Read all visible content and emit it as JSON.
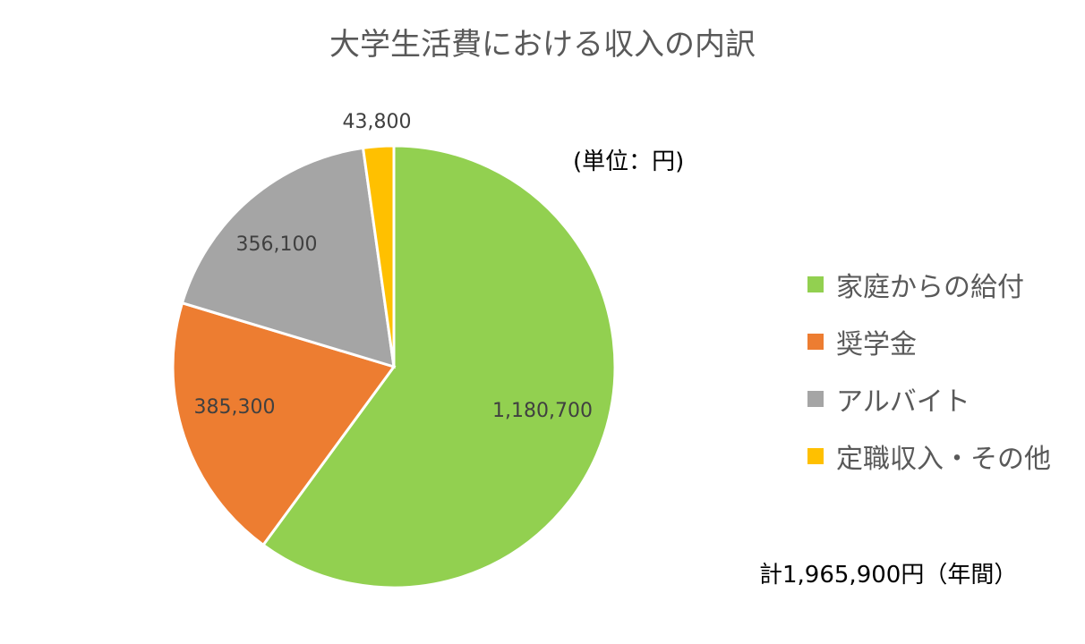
{
  "chart_data": {
    "type": "pie",
    "title": "大学生活費における収入の内訳",
    "unit_note": "(単位：円)",
    "total_note": "計1,965,900円（年間）",
    "legend_position": "right",
    "slices": [
      {
        "label": "家庭からの給付",
        "value": 1180700,
        "display": "1,180,700",
        "color": "#92d050"
      },
      {
        "label": "奨学金",
        "value": 385300,
        "display": "385,300",
        "color": "#ed7d31"
      },
      {
        "label": "アルバイト",
        "value": 356100,
        "display": "356,100",
        "color": "#a5a5a5"
      },
      {
        "label": "定職収入・その他",
        "value": 43800,
        "display": "43,800",
        "color": "#ffc000"
      }
    ]
  }
}
